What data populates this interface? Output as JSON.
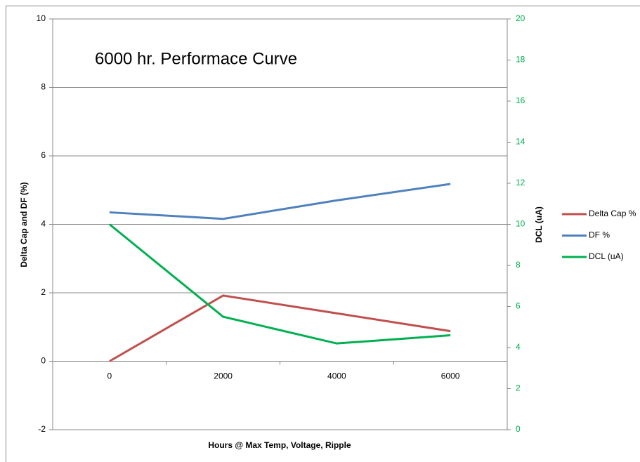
{
  "chart_data": {
    "type": "line",
    "title": "6000 hr. Performace Curve",
    "x_label": "Hours @ Max Temp, Voltage, Ripple",
    "y_label": "Delta Cap and DF (%)",
    "y2_label": "DCL (uA)",
    "categories": [
      "0",
      "2000",
      "4000",
      "6000"
    ],
    "series": [
      {
        "name": "Delta Cap %",
        "color": "#c0504d",
        "values": [
          0,
          1.92,
          1.4,
          0.88
        ]
      },
      {
        "name": "DF %",
        "color": "#4f81bd",
        "values": [
          4.35,
          4.16,
          4.7,
          5.18
        ]
      },
      {
        "name": "DCL (uA)",
        "color": "#00b050",
        "axis": "y2",
        "values": [
          10.0,
          5.5,
          4.2,
          4.6
        ]
      }
    ],
    "ylim": [
      -2,
      10
    ],
    "yticks": [
      -2,
      0,
      2,
      4,
      6,
      8,
      10
    ],
    "y2lim": [
      0,
      20
    ],
    "y2ticks": [
      0,
      2,
      4,
      6,
      8,
      10,
      12,
      14,
      16,
      18,
      20
    ],
    "y2color": "#00b050",
    "grid": true,
    "legend": "right"
  }
}
